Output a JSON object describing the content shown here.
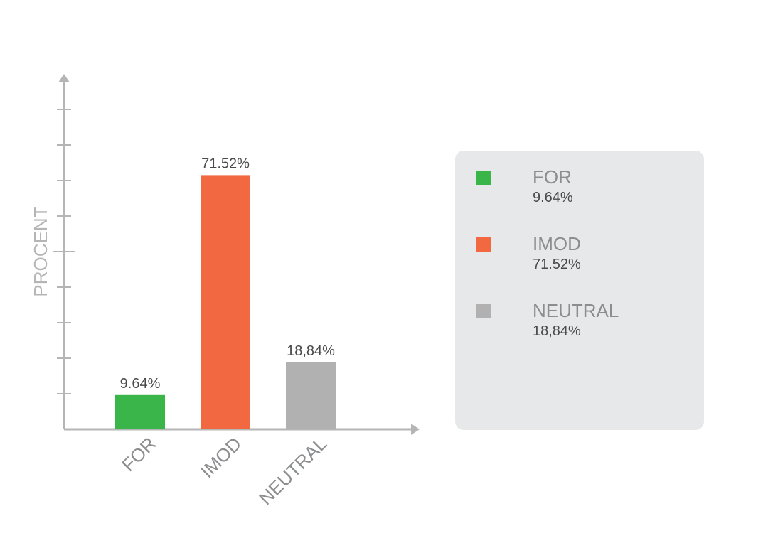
{
  "chart_data": {
    "type": "bar",
    "title": "",
    "xlabel": "",
    "ylabel": "PROCENT",
    "ylim": [
      0,
      100
    ],
    "categories": [
      "FOR",
      "IMOD",
      "NEUTRAL"
    ],
    "values": [
      9.64,
      71.52,
      18.84
    ],
    "data_labels": [
      "9.64%",
      "71.52%",
      "18,84%"
    ],
    "colors": [
      "#3ab54a",
      "#f26841",
      "#b0b1b0"
    ],
    "grid": false,
    "legend_position": "right"
  },
  "legend": {
    "items": [
      {
        "label": "FOR",
        "value": "9.64%",
        "color": "#3ab54a"
      },
      {
        "label": "IMOD",
        "value": "71.52%",
        "color": "#f26841"
      },
      {
        "label": "NEUTRAL",
        "value": "18,84%",
        "color": "#b0b1b0"
      }
    ]
  },
  "colors": {
    "axis": "#b4b5b5",
    "axis_label": "#b4b5b5",
    "tick_label": "#8c8d8f",
    "data_label": "#4a4a4a",
    "legend_bg": "#e7e8e9"
  }
}
